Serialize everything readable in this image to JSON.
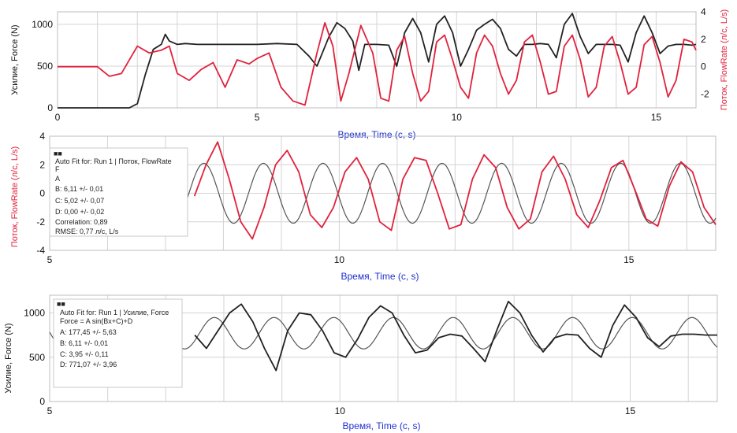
{
  "colors": {
    "force": "#222222",
    "flow": "#e0223d",
    "fit": "#555555",
    "axis_label": "#1f2fd0"
  },
  "chart_data": [
    {
      "type": "line",
      "xlabel": "Время, Time (с, s)",
      "ylabel": "Усилие, Force (N)",
      "y2label": "Поток, FlowRate (л/с, L/s)",
      "xlim": [
        0,
        16
      ],
      "ylim": [
        0,
        1150
      ],
      "y2lim": [
        -3,
        4
      ],
      "x_ticks": [
        "0",
        "5",
        "10",
        "15"
      ],
      "y_ticks": [
        "0",
        "500",
        "1000"
      ],
      "y2_ticks": [
        "-2",
        "0",
        "2",
        "4"
      ],
      "grid": true,
      "series": [
        {
          "axis": "left",
          "color": "#222222",
          "x": [
            0,
            1.5,
            1.8,
            2.0,
            2.2,
            2.4,
            2.6,
            2.7,
            2.8,
            3.0,
            3.2,
            3.5,
            4.0,
            4.5,
            5.0,
            5.5,
            6.0,
            6.3,
            6.5,
            6.8,
            7.0,
            7.2,
            7.4,
            7.55,
            7.7,
            8.0,
            8.3,
            8.5,
            8.7,
            8.9,
            9.1,
            9.3,
            9.5,
            9.7,
            9.9,
            10.1,
            10.3,
            10.5,
            10.7,
            10.9,
            11.1,
            11.3,
            11.5,
            11.7,
            11.9,
            12.1,
            12.3,
            12.5,
            12.7,
            12.9,
            13.1,
            13.3,
            13.5,
            13.7,
            13.9,
            14.1,
            14.3,
            14.5,
            14.7,
            14.9,
            15.1,
            15.3,
            15.5,
            15.7,
            15.9,
            16.0
          ],
          "y": [
            0,
            0,
            0,
            50,
            400,
            700,
            760,
            880,
            800,
            760,
            770,
            760,
            760,
            760,
            760,
            770,
            760,
            620,
            500,
            850,
            1020,
            950,
            800,
            450,
            760,
            760,
            750,
            500,
            900,
            1070,
            900,
            550,
            1000,
            1100,
            900,
            500,
            700,
            930,
            1000,
            1060,
            950,
            700,
            620,
            760,
            760,
            770,
            760,
            600,
            1000,
            1130,
            850,
            650,
            760,
            760,
            760,
            750,
            550,
            900,
            1100,
            900,
            650,
            740,
            760,
            760,
            750,
            760
          ]
        },
        {
          "axis": "right",
          "color": "#e0223d",
          "x": [
            0,
            0.5,
            1.0,
            1.3,
            1.6,
            2.0,
            2.3,
            2.6,
            2.8,
            3.0,
            3.3,
            3.6,
            3.9,
            4.2,
            4.5,
            4.8,
            5.0,
            5.3,
            5.6,
            5.9,
            6.2,
            6.5,
            6.7,
            6.9,
            7.1,
            7.3,
            7.6,
            7.9,
            8.1,
            8.3,
            8.5,
            8.7,
            8.9,
            9.1,
            9.3,
            9.5,
            9.7,
            9.9,
            10.1,
            10.3,
            10.5,
            10.7,
            10.9,
            11.1,
            11.3,
            11.5,
            11.7,
            11.9,
            12.1,
            12.3,
            12.5,
            12.7,
            12.9,
            13.1,
            13.3,
            13.5,
            13.7,
            13.9,
            14.1,
            14.3,
            14.5,
            14.7,
            14.9,
            15.1,
            15.3,
            15.5,
            15.7,
            15.9,
            16.0
          ],
          "y": [
            0,
            0,
            0,
            -0.7,
            -0.5,
            1.5,
            1.0,
            1.2,
            1.5,
            -0.5,
            -1.0,
            -0.2,
            0.3,
            -1.5,
            0.5,
            0.2,
            0.6,
            1.0,
            -1.5,
            -2.5,
            -2.8,
            1.0,
            3.2,
            1.5,
            -2.5,
            -0.5,
            3.0,
            1.0,
            -2.3,
            -2.5,
            1.2,
            2.2,
            -0.5,
            -2.5,
            -1.8,
            1.8,
            2.3,
            0.5,
            -1.5,
            -2.3,
            1.0,
            2.3,
            1.5,
            -0.5,
            -2.0,
            -1.0,
            1.8,
            2.3,
            0.3,
            -2.0,
            -1.8,
            1.5,
            2.3,
            0.5,
            -2.2,
            -1.5,
            1.5,
            2.2,
            0.3,
            -2.0,
            -1.5,
            1.6,
            2.2,
            0.3,
            -2.2,
            -1.0,
            2.0,
            1.8,
            1.2
          ]
        }
      ]
    },
    {
      "type": "line",
      "xlabel": "Время, Time (с, s)",
      "ylabel": "Поток, FlowRate (л/с, L/s)",
      "xlim": [
        5,
        16.5
      ],
      "ylim": [
        -4,
        4
      ],
      "x_ticks": [
        "5",
        "10",
        "15"
      ],
      "y_ticks": [
        "-4",
        "-2",
        "0",
        "2",
        "4"
      ],
      "grid": true,
      "fit_box": {
        "header": "■■",
        "lines": [
          "Auto Fit for: Run 1 | Поток, FlowRate",
          "F",
          "A",
          "B: 6,11 +/- 0,01",
          "C: 5,02 +/- 0,07",
          "D: 0,00 +/- 0,02",
          "Correlation: 0,89",
          "RMSE: 0,77 л/с, L/s"
        ]
      },
      "fit": {
        "A": 2.1,
        "B": 6.11,
        "C": 5.02,
        "D": 0.0
      },
      "series": [
        {
          "color": "#e0223d",
          "x": [
            7.5,
            7.7,
            7.9,
            8.1,
            8.3,
            8.5,
            8.7,
            8.9,
            9.1,
            9.3,
            9.5,
            9.7,
            9.9,
            10.1,
            10.3,
            10.5,
            10.7,
            10.9,
            11.1,
            11.3,
            11.5,
            11.7,
            11.9,
            12.1,
            12.3,
            12.5,
            12.7,
            12.9,
            13.1,
            13.3,
            13.5,
            13.7,
            13.9,
            14.1,
            14.3,
            14.5,
            14.7,
            14.9,
            15.1,
            15.3,
            15.5,
            15.7,
            15.9,
            16.1,
            16.3,
            16.5
          ],
          "y": [
            -0.2,
            2.0,
            3.6,
            1.0,
            -2.0,
            -3.2,
            -1.0,
            2.0,
            3.0,
            1.5,
            -1.5,
            -2.4,
            -1.0,
            1.5,
            2.5,
            1.0,
            -2.0,
            -2.6,
            1.0,
            2.5,
            2.3,
            0.0,
            -2.5,
            -2.2,
            1.0,
            2.7,
            1.8,
            -1.0,
            -2.5,
            -1.8,
            1.5,
            2.6,
            1.0,
            -1.5,
            -2.4,
            -0.5,
            1.8,
            2.3,
            0.3,
            -1.8,
            -2.3,
            0.5,
            2.2,
            1.5,
            -1.0,
            -2.2
          ]
        }
      ]
    },
    {
      "type": "line",
      "xlabel": "Время, Time (с, s)",
      "ylabel": "Усилие, Force (N)",
      "xlim": [
        5,
        16.5
      ],
      "ylim": [
        0,
        1200
      ],
      "x_ticks": [
        "5",
        "10",
        "15"
      ],
      "y_ticks": [
        "0",
        "500",
        "1000"
      ],
      "grid": true,
      "fit_box": {
        "header": "■■",
        "lines": [
          "Auto Fit for: Run 1 | Усилие, Force",
          "Force = A sin(Bx+C)+D",
          "A: 177,45 +/- 5,63",
          "B: 6,11 +/- 0,01",
          "C: 3,95 +/- 0,11",
          "D: 771,07 +/- 3,96"
        ]
      },
      "fit": {
        "A": 177.45,
        "B": 6.11,
        "C": 3.95,
        "D": 771.07
      },
      "series": [
        {
          "color": "#222222",
          "x": [
            7.5,
            7.7,
            7.9,
            8.1,
            8.3,
            8.5,
            8.7,
            8.9,
            9.1,
            9.3,
            9.5,
            9.7,
            9.9,
            10.1,
            10.3,
            10.5,
            10.7,
            10.9,
            11.1,
            11.3,
            11.5,
            11.7,
            11.9,
            12.1,
            12.3,
            12.5,
            12.7,
            12.9,
            13.1,
            13.3,
            13.5,
            13.7,
            13.9,
            14.1,
            14.3,
            14.5,
            14.7,
            14.9,
            15.1,
            15.3,
            15.5,
            15.7,
            15.9,
            16.1,
            16.3,
            16.5
          ],
          "y": [
            750,
            600,
            800,
            1000,
            1100,
            900,
            600,
            350,
            800,
            1000,
            980,
            800,
            550,
            500,
            700,
            950,
            1080,
            1000,
            750,
            550,
            580,
            720,
            760,
            740,
            600,
            450,
            800,
            1130,
            1000,
            750,
            560,
            720,
            760,
            750,
            600,
            500,
            860,
            1090,
            950,
            720,
            620,
            740,
            760,
            760,
            750,
            750
          ]
        }
      ]
    }
  ]
}
